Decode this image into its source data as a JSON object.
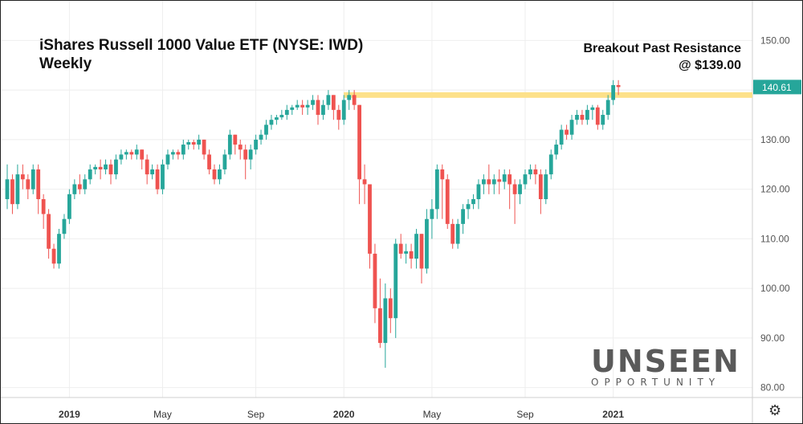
{
  "chart_data": {
    "type": "candlestick",
    "title_line1": "iShares Russell 1000 Value ETF (NYSE: IWD)",
    "title_line2": "Weekly",
    "annotation_line1": "Breakout Past Resistance",
    "annotation_line2": "@ $139.00",
    "resistance_level": 139.0,
    "last_price": 140.61,
    "last_price_label": "140.61",
    "ylim": [
      78,
      158
    ],
    "y_ticks": [
      80,
      90,
      100,
      110,
      120,
      130,
      140,
      150
    ],
    "y_tick_labels": [
      "80.00",
      "90.00",
      "100.00",
      "110.00",
      "120.00",
      "130.00",
      "140.00",
      "150.00"
    ],
    "x_ticks": [
      {
        "index": 12,
        "label": "2019"
      },
      {
        "index": 30,
        "label": "May"
      },
      {
        "index": 48,
        "label": "Sep"
      },
      {
        "index": 65,
        "label": "2020"
      },
      {
        "index": 82,
        "label": "May"
      },
      {
        "index": 100,
        "label": "Sep"
      },
      {
        "index": 117,
        "label": "2021"
      }
    ],
    "candles": [
      [
        118,
        122,
        125,
        116
      ],
      [
        122,
        117,
        123,
        115
      ],
      [
        117,
        123,
        125,
        116
      ],
      [
        123,
        122,
        125,
        120
      ],
      [
        122,
        120,
        123,
        118
      ],
      [
        120,
        124,
        125,
        119
      ],
      [
        124,
        118,
        125,
        115
      ],
      [
        118,
        115,
        119,
        112
      ],
      [
        115,
        108,
        116,
        106
      ],
      [
        108,
        105,
        109,
        104
      ],
      [
        105,
        111,
        112,
        104
      ],
      [
        111,
        114,
        115,
        110
      ],
      [
        114,
        119,
        120,
        113
      ],
      [
        119,
        121,
        122,
        118
      ],
      [
        121,
        120,
        123,
        119
      ],
      [
        120,
        122,
        123,
        119
      ],
      [
        122,
        124,
        125,
        121
      ],
      [
        124,
        124.5,
        125,
        123
      ],
      [
        124.5,
        124,
        126,
        122
      ],
      [
        124,
        125,
        126,
        123
      ],
      [
        125,
        123,
        126,
        121
      ],
      [
        123,
        126,
        127,
        122
      ],
      [
        126,
        127,
        128,
        125
      ],
      [
        127,
        127.5,
        128,
        126
      ],
      [
        127.5,
        127,
        128,
        126
      ],
      [
        127,
        128,
        129,
        126
      ],
      [
        128,
        126,
        128,
        124
      ],
      [
        126,
        123,
        127,
        121
      ],
      [
        123,
        124,
        125,
        122
      ],
      [
        124,
        120,
        125,
        119
      ],
      [
        120,
        125,
        126,
        119
      ],
      [
        125,
        127,
        128,
        124
      ],
      [
        127,
        127.5,
        128,
        126
      ],
      [
        127.5,
        127,
        128,
        126
      ],
      [
        127,
        129,
        130,
        126
      ],
      [
        129,
        129.5,
        130,
        128
      ],
      [
        129.5,
        129,
        130,
        128
      ],
      [
        129,
        130,
        131,
        128
      ],
      [
        130,
        127,
        130,
        126
      ],
      [
        127,
        124,
        128,
        123
      ],
      [
        124,
        122,
        125,
        121
      ],
      [
        122,
        124,
        125,
        121
      ],
      [
        124,
        127,
        128,
        123
      ],
      [
        127,
        131,
        132,
        126
      ],
      [
        131,
        129,
        131,
        127
      ],
      [
        129,
        128,
        130,
        126
      ],
      [
        128,
        126,
        129,
        122
      ],
      [
        126,
        128,
        129,
        124
      ],
      [
        128,
        130,
        131,
        127
      ],
      [
        130,
        131,
        132,
        129
      ],
      [
        131,
        133,
        134,
        130
      ],
      [
        133,
        134,
        135,
        132
      ],
      [
        134,
        134.5,
        135,
        133
      ],
      [
        134.5,
        135,
        136,
        134
      ],
      [
        135,
        136,
        137,
        134
      ],
      [
        136,
        136.5,
        137,
        135
      ],
      [
        136.5,
        137,
        138,
        136
      ],
      [
        137,
        136.5,
        138,
        135
      ],
      [
        136.5,
        137,
        138,
        135
      ],
      [
        137,
        138,
        139,
        136
      ],
      [
        138,
        135,
        139,
        133
      ],
      [
        135,
        137,
        138,
        134
      ],
      [
        137,
        139,
        140,
        136
      ],
      [
        139,
        136,
        139,
        134
      ],
      [
        136,
        134,
        137,
        132
      ],
      [
        134,
        138,
        139,
        133
      ],
      [
        138,
        139,
        140,
        136
      ],
      [
        139,
        137,
        140,
        136
      ],
      [
        137,
        122,
        137,
        117
      ],
      [
        122,
        121,
        125,
        117
      ],
      [
        121,
        107,
        115,
        104
      ],
      [
        107,
        96,
        109,
        93
      ],
      [
        96,
        89,
        102,
        88
      ],
      [
        89,
        98,
        101,
        84
      ],
      [
        98,
        94,
        100,
        91
      ],
      [
        94,
        109,
        110,
        90
      ],
      [
        109,
        107,
        111,
        106
      ],
      [
        107,
        107.5,
        109,
        105
      ],
      [
        107.5,
        106,
        109,
        104
      ],
      [
        106,
        111,
        112,
        104
      ],
      [
        111,
        104,
        111,
        101
      ],
      [
        104,
        114,
        116,
        103
      ],
      [
        114,
        116,
        118,
        110
      ],
      [
        116,
        124,
        125,
        114
      ],
      [
        124,
        122,
        125,
        114
      ],
      [
        122,
        113,
        123,
        112
      ],
      [
        113,
        109,
        114,
        108
      ],
      [
        109,
        113,
        114,
        108
      ],
      [
        113,
        116,
        117,
        111
      ],
      [
        116,
        117,
        118,
        114
      ],
      [
        117,
        118,
        119,
        116
      ],
      [
        118,
        121,
        122,
        116
      ],
      [
        121,
        122,
        123,
        119
      ],
      [
        122,
        121,
        125,
        119
      ],
      [
        121,
        122,
        123,
        119
      ],
      [
        122,
        121.5,
        124,
        119
      ],
      [
        121.5,
        123,
        124,
        120
      ],
      [
        123,
        121,
        124,
        116
      ],
      [
        121,
        119,
        122,
        113
      ],
      [
        119,
        121,
        122,
        117
      ],
      [
        121,
        123,
        124,
        120
      ],
      [
        123,
        124,
        125,
        122
      ],
      [
        124,
        123,
        125,
        121
      ],
      [
        123,
        118,
        124,
        115
      ],
      [
        118,
        123,
        124,
        117
      ],
      [
        123,
        127,
        128,
        122
      ],
      [
        127,
        129,
        130,
        126
      ],
      [
        129,
        132,
        133,
        128
      ],
      [
        132,
        131,
        133,
        130
      ],
      [
        131,
        134,
        135,
        130
      ],
      [
        134,
        135,
        136,
        133
      ],
      [
        135,
        134,
        136,
        133
      ],
      [
        134,
        136,
        137,
        133
      ],
      [
        136,
        136.5,
        137,
        134
      ],
      [
        136.5,
        133,
        137,
        132
      ],
      [
        133,
        135,
        136,
        132
      ],
      [
        135,
        138,
        139,
        134
      ],
      [
        138,
        141,
        142,
        137
      ],
      [
        141,
        140.61,
        142,
        139
      ]
    ]
  },
  "colors": {
    "up": "#26a69a",
    "down": "#ef5350",
    "resistance": "#fde18a",
    "price_tag": "#26a69a",
    "grid": "#eeeeee",
    "axis_text": "#555555"
  },
  "logo": {
    "main": "UNSEEN",
    "sub": "OPPORTUNITY"
  },
  "icons": {
    "settings": "gear-icon"
  }
}
